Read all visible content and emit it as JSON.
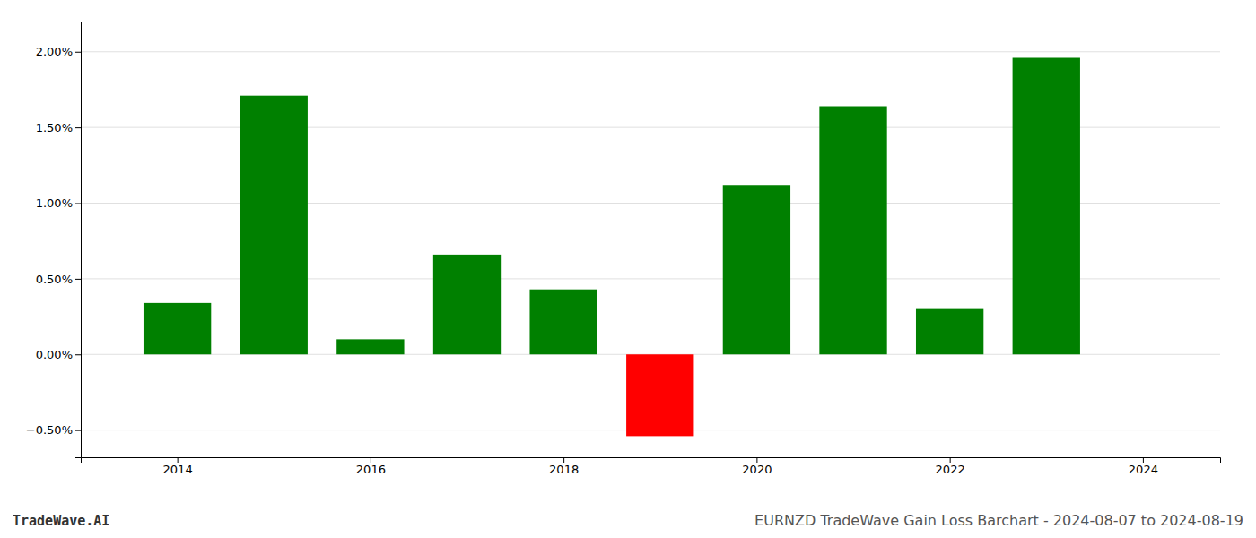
{
  "chart_data": {
    "type": "bar",
    "title": "EURNZD TradeWave Gain Loss Barchart - 2024-08-07 to 2024-08-19",
    "annotations": [
      "TradeWave.AI"
    ],
    "x": [
      2014,
      2015,
      2016,
      2017,
      2018,
      2019,
      2020,
      2021,
      2022,
      2023
    ],
    "values": [
      0.0034,
      0.0171,
      0.001,
      0.0066,
      0.0043,
      -0.0054,
      0.0112,
      0.0164,
      0.003,
      0.0196
    ],
    "colors": [
      "#008000",
      "#008000",
      "#008000",
      "#008000",
      "#008000",
      "#ff0000",
      "#008000",
      "#008000",
      "#008000",
      "#008000"
    ],
    "xlim": [
      2013.0,
      2024.8
    ],
    "xticks": [
      2014,
      2016,
      2018,
      2020,
      2022,
      2024
    ],
    "ylim": [
      -0.0068,
      0.022
    ],
    "yticks": [
      {
        "value": -0.005,
        "label": "−0.50%"
      },
      {
        "value": 0.0,
        "label": "0.00%"
      },
      {
        "value": 0.005,
        "label": "0.50%"
      },
      {
        "value": 0.01,
        "label": "1.00%"
      },
      {
        "value": 0.015,
        "label": "1.50%"
      },
      {
        "value": 0.02,
        "label": "2.00%"
      }
    ],
    "grid": true
  }
}
